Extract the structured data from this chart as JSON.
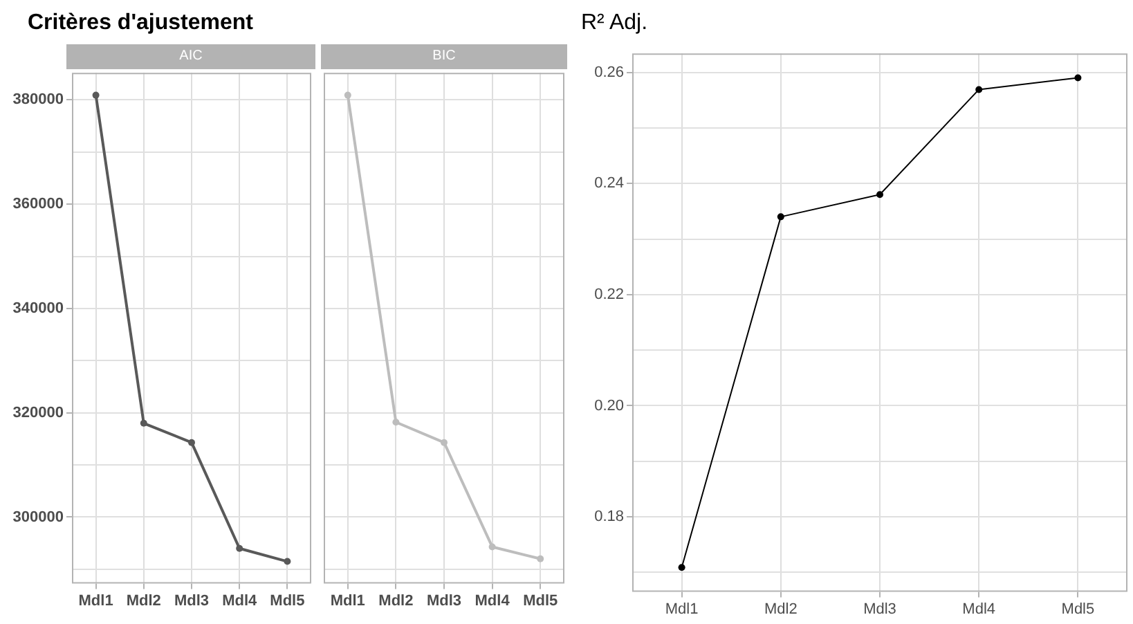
{
  "chart_data": [
    {
      "type": "line",
      "title": "Critères d'ajustement",
      "subtitle": "AIC",
      "categories": [
        "Mdl1",
        "Mdl2",
        "Mdl3",
        "Mdl4",
        "Mdl5"
      ],
      "series": [
        {
          "color": "#595959",
          "values": [
            380900,
            318000,
            314300,
            294000,
            291500
          ]
        }
      ],
      "ylim": [
        287250,
        385200
      ],
      "yticks": [
        {
          "value": 290000,
          "label": null
        },
        300000,
        {
          "value": 310000,
          "label": null
        },
        320000,
        {
          "value": 330000,
          "label": null
        },
        340000,
        {
          "value": 350000,
          "label": null
        },
        360000,
        {
          "value": 370000,
          "label": null
        },
        380000
      ],
      "grid": true,
      "marker": "circle"
    },
    {
      "type": "line",
      "subtitle": "BIC",
      "categories": [
        "Mdl1",
        "Mdl2",
        "Mdl3",
        "Mdl4",
        "Mdl5"
      ],
      "series": [
        {
          "color": "#bdbdbd",
          "values": [
            380900,
            318200,
            314300,
            294300,
            292000
          ]
        }
      ],
      "ylim": [
        287250,
        385200
      ],
      "yticks": [
        {
          "value": 290000,
          "label": null
        },
        300000,
        {
          "value": 310000,
          "label": null
        },
        320000,
        {
          "value": 330000,
          "label": null
        },
        340000,
        {
          "value": 350000,
          "label": null
        },
        360000,
        {
          "value": 370000,
          "label": null
        },
        380000
      ],
      "grid": true,
      "marker": "circle",
      "tick_labels": "x"
    },
    {
      "type": "line",
      "title": "R² Adj.",
      "categories": [
        "Mdl1",
        "Mdl2",
        "Mdl3",
        "Mdl4",
        "Mdl5"
      ],
      "series": [
        {
          "color": "#000000",
          "values": [
            0.1709,
            0.234,
            0.238,
            0.2569,
            0.259
          ]
        }
      ],
      "ylim": [
        0.1665,
        0.2634
      ],
      "yticks": [
        {
          "value": 0.17,
          "label": null
        },
        0.18,
        {
          "value": 0.19,
          "label": null
        },
        {
          "value": 0.2,
          "label": "0.20"
        },
        {
          "value": 0.21,
          "label": null
        },
        0.22,
        {
          "value": 0.23,
          "label": null
        },
        0.24,
        {
          "value": 0.25,
          "label": null
        },
        0.26
      ],
      "grid": true,
      "marker": "circle"
    }
  ]
}
